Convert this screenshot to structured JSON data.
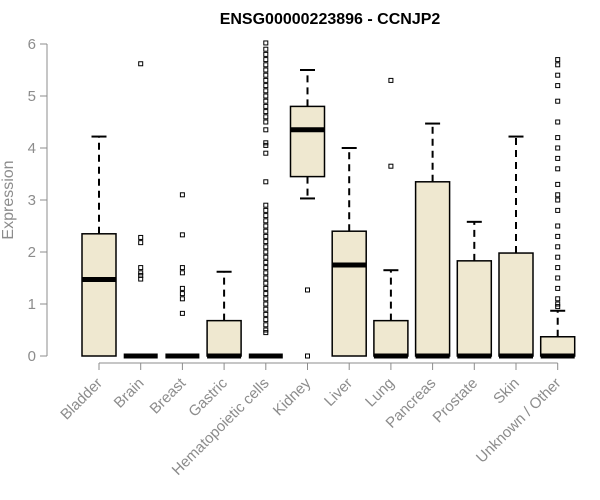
{
  "chart_data": {
    "type": "boxplot",
    "title": "ENSG00000223896 - CCNJP2",
    "xlabel": "",
    "ylabel": "Expression",
    "ylim": [
      0,
      6
    ],
    "yticks": [
      "0",
      "1",
      "2",
      "3",
      "4",
      "5",
      "6"
    ],
    "categories": [
      "Bladder",
      "Brain",
      "Breast",
      "Gastric",
      "Hematopoietic cells",
      "Kidney",
      "Liver",
      "Lung",
      "Pancreas",
      "Prostate",
      "Skin",
      "Unknown / Other"
    ],
    "series": [
      {
        "name": "Bladder",
        "whisker_low": 0,
        "q1": 0,
        "median": 1.47,
        "q3": 2.35,
        "whisker_high": 4.22,
        "outliers": []
      },
      {
        "name": "Brain",
        "whisker_low": 0,
        "q1": 0,
        "median": 0,
        "q3": 0,
        "whisker_high": 0,
        "outliers": [
          5.62,
          2.28,
          2.18,
          1.7,
          1.6,
          1.55,
          1.48
        ]
      },
      {
        "name": "Breast",
        "whisker_low": 0,
        "q1": 0,
        "median": 0,
        "q3": 0,
        "whisker_high": 0,
        "outliers": [
          3.1,
          2.33,
          1.7,
          1.6,
          1.3,
          1.2,
          1.1,
          0.82
        ]
      },
      {
        "name": "Gastric",
        "whisker_low": 0,
        "q1": 0,
        "median": 0,
        "q3": 0.68,
        "whisker_high": 1.62,
        "outliers": []
      },
      {
        "name": "Hematopoietic cells",
        "whisker_low": 0,
        "q1": 0,
        "median": 0,
        "q3": 0,
        "whisker_high": 0,
        "outliers": [
          6.02,
          5.9,
          5.8,
          5.7,
          5.6,
          5.5,
          5.4,
          5.3,
          5.2,
          5.1,
          5.0,
          4.9,
          4.8,
          4.7,
          4.6,
          4.5,
          4.35,
          4.1,
          4.05,
          3.9,
          3.35,
          2.9,
          2.8,
          2.7,
          2.6,
          2.5,
          2.4,
          2.3,
          2.2,
          2.1,
          2.0,
          1.9,
          1.8,
          1.7,
          1.6,
          1.5,
          1.4,
          1.3,
          1.2,
          1.1,
          1.0,
          0.9,
          0.8,
          0.7,
          0.6,
          0.5,
          0.45
        ]
      },
      {
        "name": "Kidney",
        "whisker_low": 3.03,
        "q1": 3.45,
        "median": 4.35,
        "q3": 4.8,
        "whisker_high": 5.5,
        "outliers": [
          1.27,
          0
        ]
      },
      {
        "name": "Liver",
        "whisker_low": 0,
        "q1": 0,
        "median": 1.75,
        "q3": 2.4,
        "whisker_high": 4.0,
        "outliers": []
      },
      {
        "name": "Lung",
        "whisker_low": 0,
        "q1": 0,
        "median": 0,
        "q3": 0.68,
        "whisker_high": 1.65,
        "outliers": [
          5.3,
          3.65
        ]
      },
      {
        "name": "Pancreas",
        "whisker_low": 0,
        "q1": 0,
        "median": 0,
        "q3": 3.35,
        "whisker_high": 4.47,
        "outliers": []
      },
      {
        "name": "Prostate",
        "whisker_low": 0,
        "q1": 0,
        "median": 0,
        "q3": 1.83,
        "whisker_high": 2.58,
        "outliers": []
      },
      {
        "name": "Skin",
        "whisker_low": 0,
        "q1": 0,
        "median": 0,
        "q3": 1.98,
        "whisker_high": 4.22,
        "outliers": []
      },
      {
        "name": "Unknown / Other",
        "whisker_low": 0,
        "q1": 0,
        "median": 0,
        "q3": 0.37,
        "whisker_high": 0.87,
        "outliers": [
          5.7,
          5.6,
          5.4,
          5.2,
          4.9,
          4.5,
          4.2,
          4.0,
          3.8,
          3.6,
          3.3,
          3.1,
          3.0,
          2.8,
          2.5,
          2.3,
          2.1,
          1.9,
          1.7,
          1.5,
          1.3,
          1.1,
          1.0,
          0.95
        ]
      }
    ],
    "colors": {
      "box_fill": "#efe8d0",
      "box_stroke": "#000000",
      "axis": "#8c8c8c",
      "title": "#000000"
    }
  }
}
